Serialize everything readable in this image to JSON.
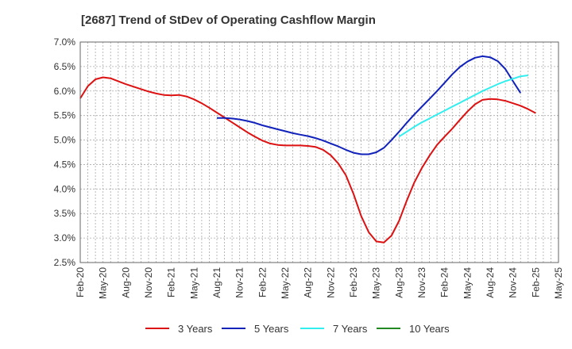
{
  "chart_data": {
    "type": "line",
    "title": "[2687]  Trend of StDev of Operating Cashflow Margin",
    "xlabel": "",
    "ylabel": "",
    "ylim": [
      2.5,
      7.0
    ],
    "yticks": [
      "7.0%",
      "6.5%",
      "6.0%",
      "5.5%",
      "5.0%",
      "4.5%",
      "4.0%",
      "3.5%",
      "3.0%",
      "2.5%"
    ],
    "ytick_values": [
      7.0,
      6.5,
      6.0,
      5.5,
      5.0,
      4.5,
      4.0,
      3.5,
      3.0,
      2.5
    ],
    "xticks": [
      "Feb-20",
      "May-20",
      "Aug-20",
      "Nov-20",
      "Feb-21",
      "May-21",
      "Aug-21",
      "Nov-21",
      "Feb-22",
      "May-22",
      "Aug-22",
      "Nov-22",
      "Feb-23",
      "May-23",
      "Aug-23",
      "Nov-23",
      "Feb-24",
      "May-24",
      "Aug-24",
      "Nov-24",
      "Feb-25",
      "May-25"
    ],
    "x_range_months": [
      0,
      63
    ],
    "grid": true,
    "legend_position": "bottom",
    "series": [
      {
        "name": "3 Years",
        "color": "#dd1111",
        "start_month": 0,
        "values": [
          5.85,
          6.1,
          6.24,
          6.28,
          6.26,
          6.2,
          6.14,
          6.09,
          6.04,
          5.99,
          5.95,
          5.92,
          5.91,
          5.92,
          5.89,
          5.83,
          5.75,
          5.66,
          5.56,
          5.46,
          5.36,
          5.26,
          5.16,
          5.07,
          4.99,
          4.93,
          4.9,
          4.89,
          4.89,
          4.89,
          4.88,
          4.86,
          4.8,
          4.69,
          4.52,
          4.28,
          3.9,
          3.45,
          3.12,
          2.93,
          2.91,
          3.05,
          3.35,
          3.76,
          4.13,
          4.43,
          4.68,
          4.9,
          5.07,
          5.23,
          5.41,
          5.58,
          5.73,
          5.82,
          5.84,
          5.83,
          5.8,
          5.75,
          5.7,
          5.63,
          5.55
        ]
      },
      {
        "name": "5 Years",
        "color": "#1122bb",
        "start_month": 18,
        "values": [
          5.45,
          5.45,
          5.44,
          5.42,
          5.39,
          5.35,
          5.3,
          5.26,
          5.22,
          5.18,
          5.14,
          5.11,
          5.08,
          5.04,
          4.99,
          4.93,
          4.87,
          4.8,
          4.74,
          4.71,
          4.71,
          4.75,
          4.84,
          5.0,
          5.17,
          5.35,
          5.52,
          5.68,
          5.84,
          6.0,
          6.17,
          6.34,
          6.49,
          6.6,
          6.68,
          6.71,
          6.69,
          6.61,
          6.45,
          6.2,
          5.96
        ]
      },
      {
        "name": "7 Years",
        "color": "#33eeee",
        "start_month": 42,
        "values": [
          5.07,
          5.17,
          5.27,
          5.36,
          5.44,
          5.52,
          5.6,
          5.68,
          5.76,
          5.84,
          5.92,
          6.0,
          6.07,
          6.14,
          6.2,
          6.25,
          6.3,
          6.32
        ]
      },
      {
        "name": "10 Years",
        "color": "#228822",
        "start_month": 0,
        "values": []
      }
    ]
  }
}
